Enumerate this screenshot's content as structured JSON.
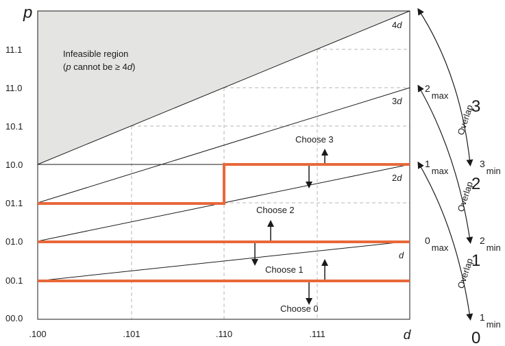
{
  "axes": {
    "y_title": "p",
    "x_title": "d",
    "y_ticks": [
      "00.0",
      "00.1",
      "01.0",
      "01.1",
      "10.0",
      "10.1",
      "11.0",
      "11.1"
    ],
    "x_ticks": [
      ".100",
      ".101",
      ".110",
      ".111"
    ]
  },
  "infeasible": {
    "title": "Infeasible region",
    "note_open": "(",
    "note_var": "p",
    "note_mid": " cannot be ≥ 4",
    "note_var2": "d",
    "note_close": ")"
  },
  "line_labels": {
    "l1": "d",
    "l2_coef": "2",
    "l2_var": "d",
    "l3_coef": "3",
    "l3_var": "d",
    "l4_coef": "4",
    "l4_var": "d"
  },
  "choices": {
    "c0": "Choose 0",
    "c1": "Choose 1",
    "c2": "Choose 2",
    "c3": "Choose 3"
  },
  "overlap": {
    "label": "Overlap",
    "digits": [
      "0",
      "1",
      "2",
      "3"
    ],
    "max_sub": "max",
    "min_sub": "min"
  },
  "colors": {
    "threshold": "#e8683a",
    "line": "#1a1a1a",
    "infeasible_fill": "#e4e4e2",
    "grid": "#b5b5b5"
  }
}
